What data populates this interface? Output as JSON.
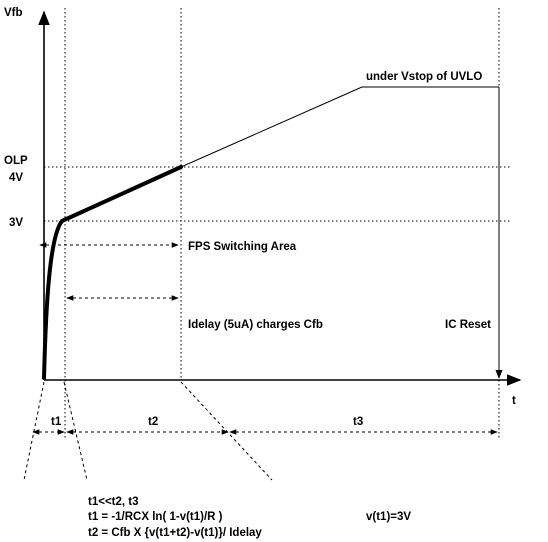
{
  "axes": {
    "y_label": "Vfb",
    "x_label": "t"
  },
  "y_ticks": {
    "olp": "OLP",
    "v4": "4V",
    "v3": "3V"
  },
  "annotations": {
    "uvlo": "under Vstop of UVLO",
    "fps": "FPS Switching Area",
    "idelay": "Idelay (5uA) charges Cfb",
    "reset": "IC Reset"
  },
  "intervals": {
    "t1": "t1",
    "t2": "t2",
    "t3": "t3"
  },
  "equations": {
    "line1": "t1<<t2, t3",
    "line2": "t1 = -1/RCX ln( 1-v(t1)/R )",
    "line3": "t2 = Cfb X {v(t1+t2)-v(t1)}/ Idelay",
    "cond": "v(t1)=3V"
  }
}
